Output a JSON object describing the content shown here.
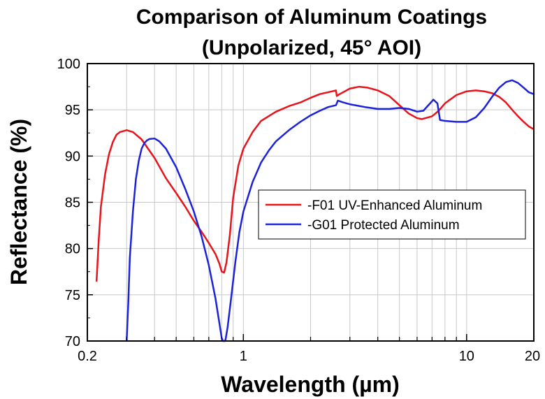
{
  "chart_data": {
    "type": "line",
    "title": "Comparison of Aluminum Coatings",
    "subtitle": "(Unpolarized, 45° AOI)",
    "xlabel": "Wavelength (µm)",
    "ylabel": "Reflectance (%)",
    "x_scale": "log",
    "xlim": [
      0.2,
      20
    ],
    "ylim": [
      70,
      100
    ],
    "x_ticks": [
      {
        "value": 0.2,
        "label": "0.2"
      },
      {
        "value": 1,
        "label": "1"
      },
      {
        "value": 10,
        "label": "10"
      },
      {
        "value": 20,
        "label": "20"
      }
    ],
    "y_ticks": [
      {
        "value": 70,
        "label": "70"
      },
      {
        "value": 75,
        "label": "75"
      },
      {
        "value": 80,
        "label": "80"
      },
      {
        "value": 85,
        "label": "85"
      },
      {
        "value": 90,
        "label": "90"
      },
      {
        "value": 95,
        "label": "95"
      },
      {
        "value": 100,
        "label": "100"
      }
    ],
    "grid": true,
    "legend_position": "center-right",
    "series": [
      {
        "name": "-F01 UV-Enhanced Aluminum",
        "color": "#e8131b",
        "points": [
          [
            0.22,
            76.5
          ],
          [
            0.225,
            81
          ],
          [
            0.23,
            84.5
          ],
          [
            0.24,
            88
          ],
          [
            0.25,
            90.2
          ],
          [
            0.26,
            91.5
          ],
          [
            0.27,
            92.3
          ],
          [
            0.28,
            92.6
          ],
          [
            0.3,
            92.8
          ],
          [
            0.32,
            92.6
          ],
          [
            0.35,
            91.8
          ],
          [
            0.4,
            89.8
          ],
          [
            0.45,
            87.6
          ],
          [
            0.5,
            86
          ],
          [
            0.55,
            84.5
          ],
          [
            0.6,
            83
          ],
          [
            0.65,
            81.8
          ],
          [
            0.7,
            80.6
          ],
          [
            0.75,
            79.4
          ],
          [
            0.78,
            78.4
          ],
          [
            0.8,
            77.5
          ],
          [
            0.82,
            77.4
          ],
          [
            0.84,
            78.5
          ],
          [
            0.87,
            81.5
          ],
          [
            0.9,
            85.5
          ],
          [
            0.95,
            89
          ],
          [
            1.0,
            90.8
          ],
          [
            1.1,
            92.6
          ],
          [
            1.2,
            93.8
          ],
          [
            1.4,
            94.8
          ],
          [
            1.6,
            95.4
          ],
          [
            1.8,
            95.8
          ],
          [
            2.0,
            96.3
          ],
          [
            2.2,
            96.7
          ],
          [
            2.5,
            97.0
          ],
          [
            2.6,
            97.1
          ],
          [
            2.62,
            96.5
          ],
          [
            2.7,
            96.7
          ],
          [
            3.0,
            97.3
          ],
          [
            3.3,
            97.5
          ],
          [
            3.6,
            97.4
          ],
          [
            4.0,
            97.1
          ],
          [
            4.5,
            96.5
          ],
          [
            5.0,
            95.5
          ],
          [
            5.5,
            94.6
          ],
          [
            6.0,
            94.1
          ],
          [
            6.3,
            94.0
          ],
          [
            7.0,
            94.3
          ],
          [
            7.5,
            94.9
          ],
          [
            8.0,
            95.7
          ],
          [
            9.0,
            96.6
          ],
          [
            10.0,
            97.0
          ],
          [
            11.0,
            97.1
          ],
          [
            12.0,
            97.0
          ],
          [
            13.0,
            96.8
          ],
          [
            14.0,
            96.4
          ],
          [
            15.0,
            95.8
          ],
          [
            16.0,
            95.0
          ],
          [
            17.0,
            94.3
          ],
          [
            18.0,
            93.7
          ],
          [
            19.0,
            93.2
          ],
          [
            20.0,
            92.9
          ]
        ]
      },
      {
        "name": "-G01 Protected Aluminum",
        "color": "#1c22d9",
        "points": [
          [
            0.3,
            70
          ],
          [
            0.305,
            74
          ],
          [
            0.31,
            79
          ],
          [
            0.32,
            84
          ],
          [
            0.33,
            87.5
          ],
          [
            0.34,
            89.5
          ],
          [
            0.35,
            90.8
          ],
          [
            0.36,
            91.4
          ],
          [
            0.37,
            91.7
          ],
          [
            0.38,
            91.85
          ],
          [
            0.4,
            91.9
          ],
          [
            0.42,
            91.6
          ],
          [
            0.45,
            90.8
          ],
          [
            0.5,
            88.8
          ],
          [
            0.55,
            86.4
          ],
          [
            0.6,
            84
          ],
          [
            0.65,
            81.3
          ],
          [
            0.7,
            78.2
          ],
          [
            0.75,
            74.6
          ],
          [
            0.78,
            72
          ],
          [
            0.8,
            70.3
          ],
          [
            0.81,
            70
          ],
          [
            0.83,
            70
          ],
          [
            0.85,
            71.5
          ],
          [
            0.88,
            74.5
          ],
          [
            0.92,
            78.5
          ],
          [
            0.96,
            81.8
          ],
          [
            1.0,
            84
          ],
          [
            1.1,
            87.2
          ],
          [
            1.2,
            89.3
          ],
          [
            1.3,
            90.6
          ],
          [
            1.4,
            91.6
          ],
          [
            1.6,
            92.8
          ],
          [
            1.8,
            93.7
          ],
          [
            2.0,
            94.4
          ],
          [
            2.2,
            94.9
          ],
          [
            2.4,
            95.3
          ],
          [
            2.6,
            95.5
          ],
          [
            2.65,
            96.0
          ],
          [
            2.8,
            95.8
          ],
          [
            3.0,
            95.6
          ],
          [
            3.5,
            95.3
          ],
          [
            4.0,
            95.1
          ],
          [
            4.5,
            95.1
          ],
          [
            5.0,
            95.2
          ],
          [
            5.5,
            95.1
          ],
          [
            6.0,
            94.8
          ],
          [
            6.4,
            94.9
          ],
          [
            6.8,
            95.6
          ],
          [
            7.1,
            96.1
          ],
          [
            7.4,
            95.7
          ],
          [
            7.6,
            93.9
          ],
          [
            8.0,
            93.8
          ],
          [
            9.0,
            93.7
          ],
          [
            10.0,
            93.7
          ],
          [
            11.0,
            94.2
          ],
          [
            12.0,
            95.2
          ],
          [
            13.0,
            96.4
          ],
          [
            14.0,
            97.4
          ],
          [
            15.0,
            98.0
          ],
          [
            16.0,
            98.2
          ],
          [
            17.0,
            97.9
          ],
          [
            18.0,
            97.4
          ],
          [
            19.0,
            96.9
          ],
          [
            20.0,
            96.7
          ]
        ]
      }
    ]
  }
}
